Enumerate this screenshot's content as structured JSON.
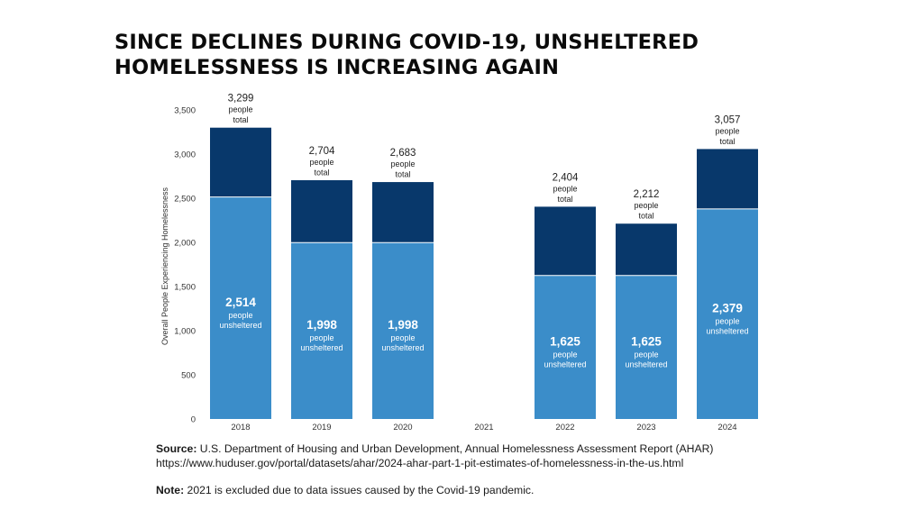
{
  "title_lines": [
    "SINCE DECLINES DURING COVID-19, UNSHELTERED",
    "HOMELESSNESS IS INCREASING AGAIN"
  ],
  "colors": {
    "unsheltered": "#3b8dc9",
    "sheltered": "#08386b",
    "text": "#1a1a1a"
  },
  "chart_data": {
    "type": "bar",
    "stacked": true,
    "ylabel": "Overall People Experiencing Homelessness",
    "xlabel": "",
    "ylim": [
      0,
      3500
    ],
    "yticks": [
      0,
      500,
      1000,
      1500,
      2000,
      2500,
      3000,
      3500
    ],
    "ytick_labels": [
      "0",
      "500",
      "1,000",
      "1,500",
      "2,000",
      "2,500",
      "3,000",
      "3,500"
    ],
    "categories": [
      "2018",
      "2019",
      "2020",
      "2021",
      "2022",
      "2023",
      "2024"
    ],
    "series": [
      {
        "key": "unsheltered",
        "values": [
          2514,
          1998,
          1998,
          null,
          1625,
          1625,
          2379
        ]
      },
      {
        "key": "sheltered",
        "values": [
          785,
          706,
          685,
          null,
          779,
          587,
          678
        ]
      }
    ],
    "totals": [
      3299,
      2704,
      2683,
      null,
      2404,
      2212,
      3057
    ],
    "total_labels": [
      "3,299",
      "2,704",
      "2,683",
      "",
      "2,404",
      "2,212",
      "3,057"
    ],
    "unsheltered_labels": [
      "2,514",
      "1,998",
      "1,998",
      "",
      "1,625",
      "1,625",
      "2,379"
    ],
    "total_caption": [
      "people",
      "total"
    ],
    "unsheltered_caption": [
      "people",
      "unsheltered"
    ],
    "grid": false
  },
  "footer": {
    "source_label": "Source:",
    "source_text": "U.S. Department of Housing and Urban Development, Annual Homelessness Assessment Report (AHAR)",
    "source_url": "https://www.huduser.gov/portal/datasets/ahar/2024-ahar-part-1-pit-estimates-of-homelessness-in-the-us.html",
    "note_label": "Note:",
    "note_text": "2021 is excluded due to data issues caused by the Covid-19 pandemic."
  }
}
